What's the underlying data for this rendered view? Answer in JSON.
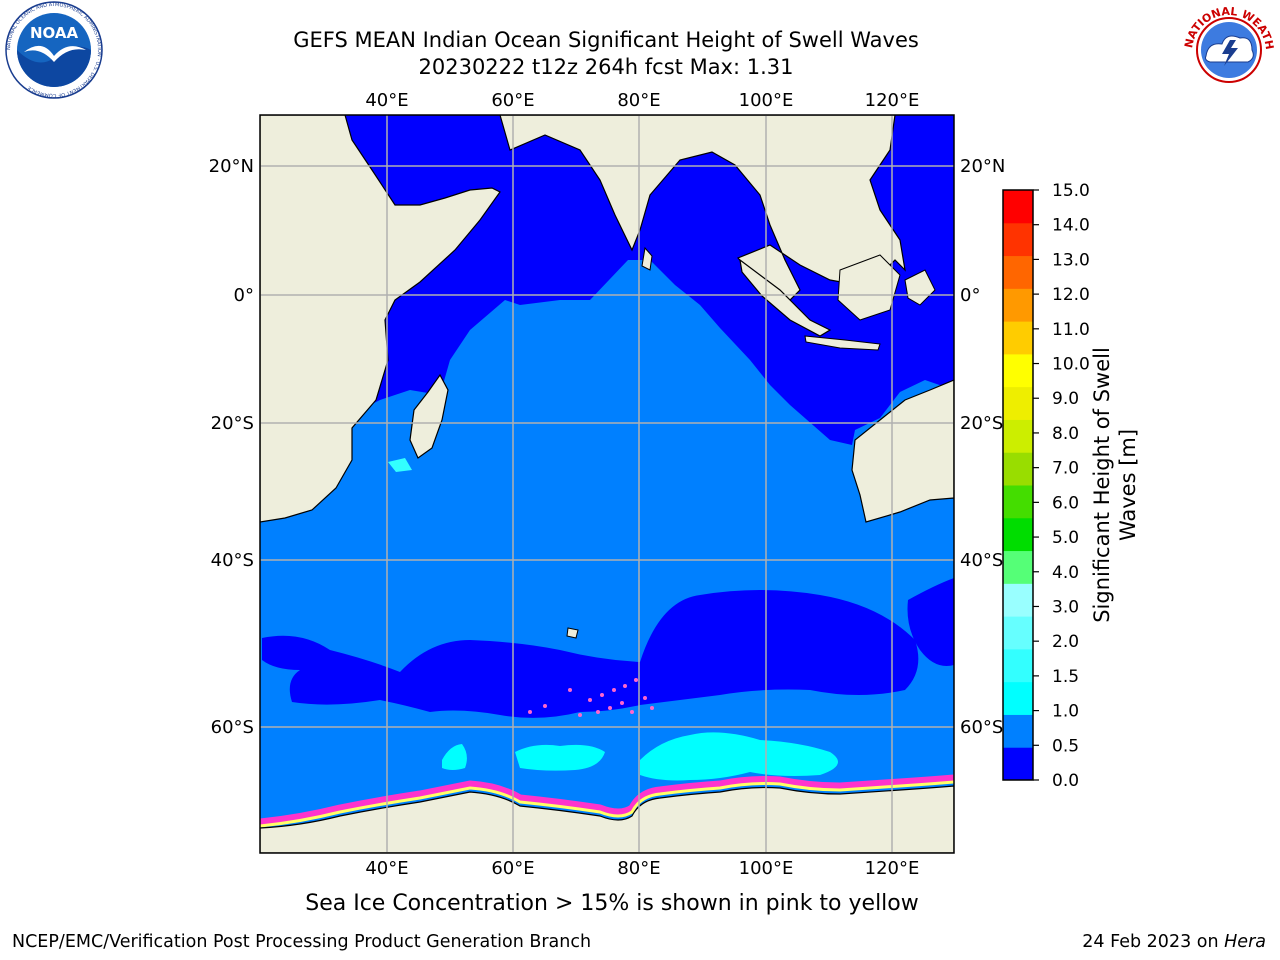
{
  "title": {
    "line1": "GEFS MEAN Indian Ocean Significant Height of Swell Waves",
    "line2": "20230222 t12z 264h fcst   Max: 1.31"
  },
  "map": {
    "lon_labels": [
      "40°E",
      "60°E",
      "80°E",
      "100°E",
      "120°E"
    ],
    "lat_labels": [
      "20°N",
      "0°",
      "20°S",
      "40°S",
      "60°S"
    ],
    "colors": {
      "ocean_low": "#0000ff",
      "ocean_mid": "#0080ff",
      "ocean_cyan": "#00ffff",
      "land": "#eeeedc",
      "ice_pink": "#ff33cc",
      "ice_yellow": "#ffff66",
      "grid": "#b0b0b0"
    }
  },
  "colorbar": {
    "title_line1": "Significant Height of Swell",
    "title_line2": "Waves [m]",
    "ticks": [
      "0.0",
      "0.5",
      "1.0",
      "1.5",
      "2.0",
      "3.0",
      "4.0",
      "5.0",
      "6.0",
      "7.0",
      "8.0",
      "9.0",
      "10.0",
      "11.0",
      "12.0",
      "13.0",
      "14.0",
      "15.0"
    ],
    "colors": [
      "#0000ff",
      "#0080ff",
      "#00ffff",
      "#33ffff",
      "#66ffff",
      "#99ffff",
      "#55ff77",
      "#00dd00",
      "#44dd00",
      "#99dd00",
      "#ccee00",
      "#eeee00",
      "#ffff00",
      "#ffcc00",
      "#ff9900",
      "#ff6600",
      "#ff3300",
      "#ff0000"
    ]
  },
  "caption": "Sea Ice Concentration > 15% is shown in pink to yellow",
  "footer": {
    "left": "NCEP/EMC/Verification Post Processing Product Generation Branch",
    "right_prefix": "24 Feb 2023 on ",
    "right_italic": "Hera"
  },
  "logos": {
    "left": {
      "text": "NOAA",
      "ring_text": "NATIONAL OCEANIC AND ATMOSPHERIC ADMINISTRATION · U.S. DEPARTMENT OF COMMERCE"
    },
    "right": {
      "ring_text": "NATIONAL WEATHER SERVICE"
    }
  }
}
